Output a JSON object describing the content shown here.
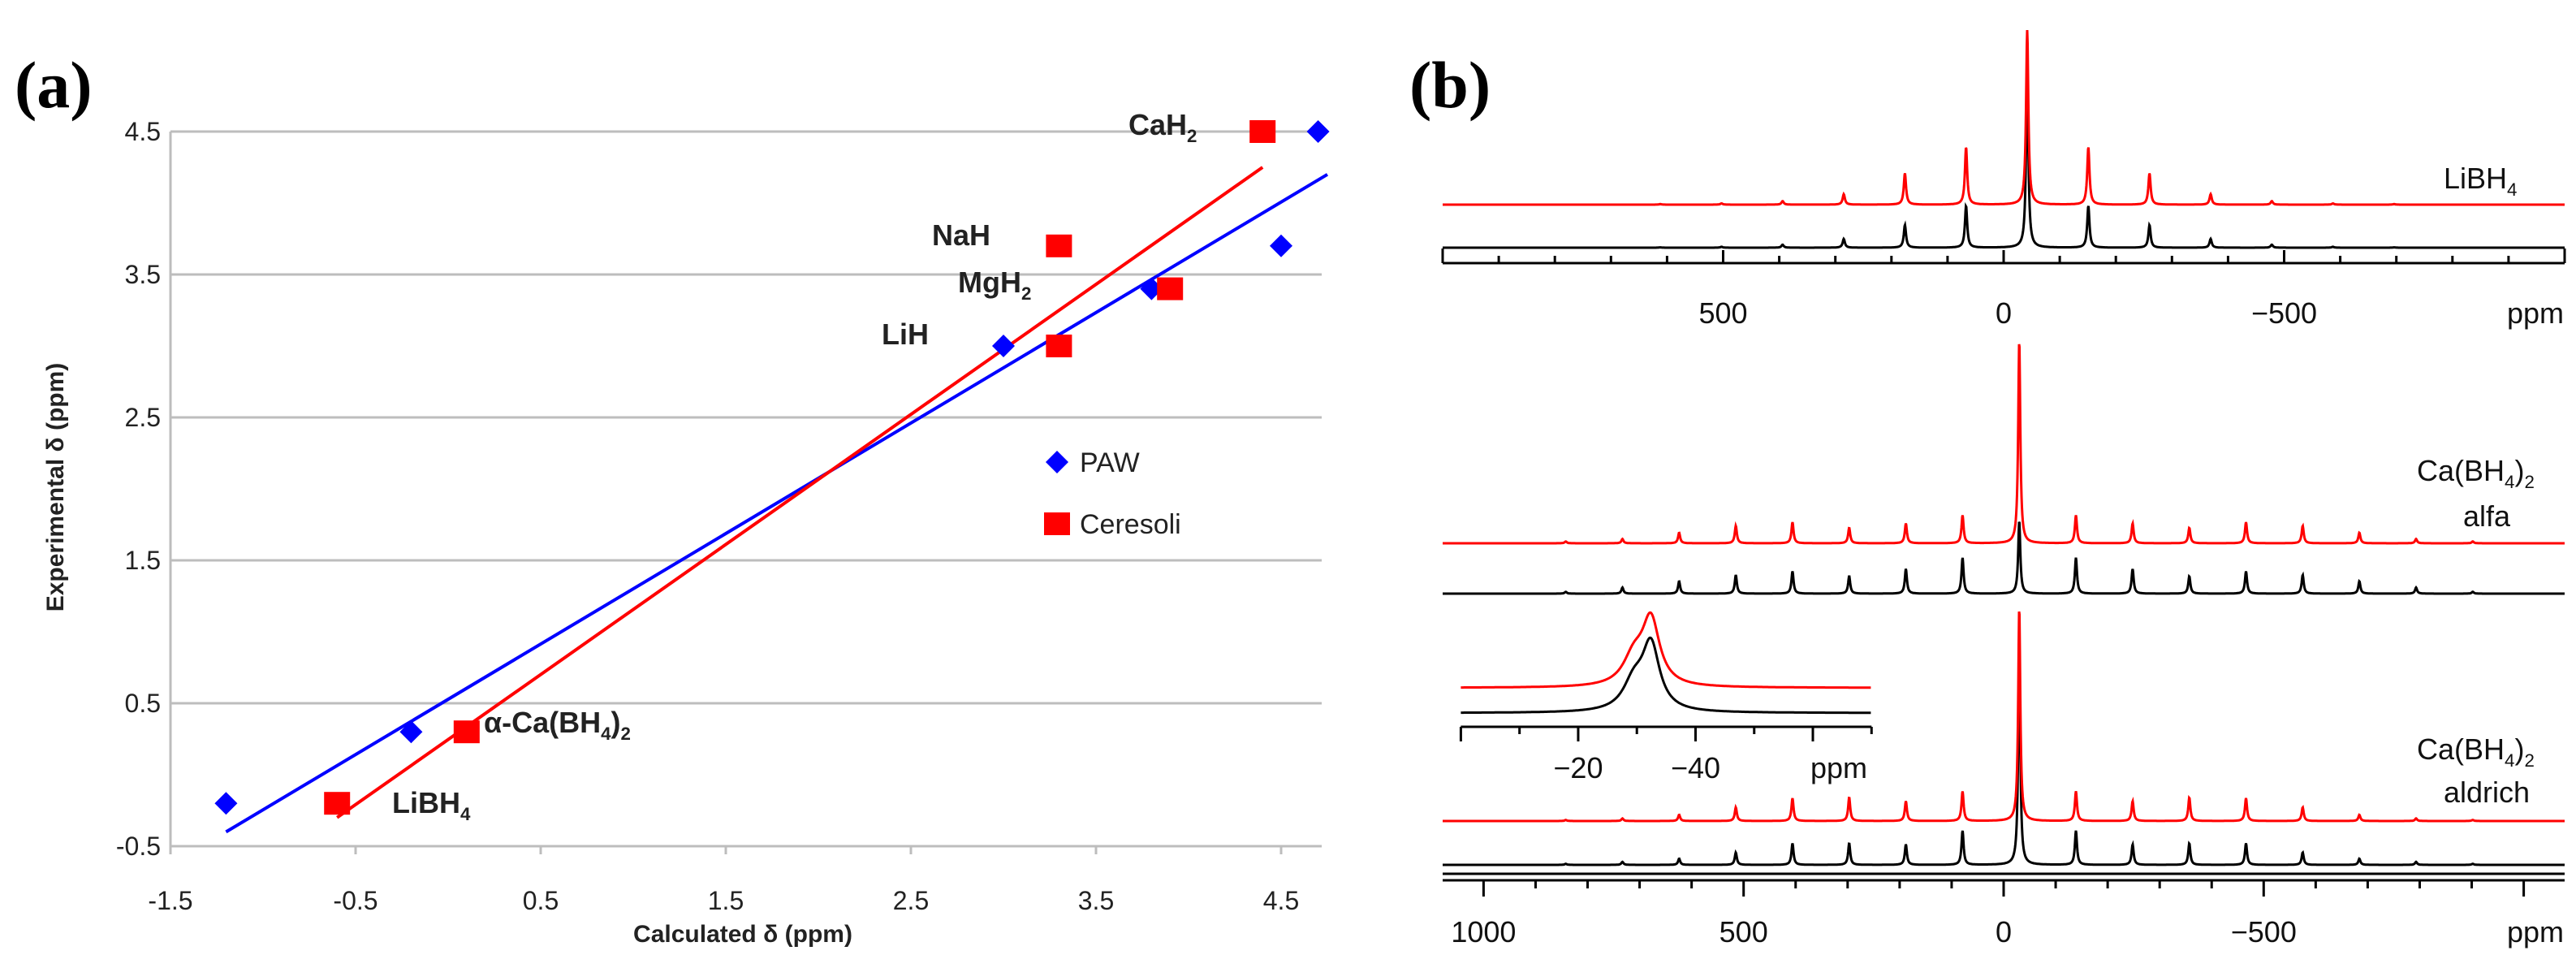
{
  "chart_data": [
    {
      "panel": "(a)",
      "type": "scatter",
      "xlabel": "Calculated δ (ppm)",
      "ylabel": "Experimental δ (ppm)",
      "xlim": [
        -1.5,
        4.75
      ],
      "ylim": [
        -0.5,
        4.5
      ],
      "xticks": [
        "-1.5",
        "-0.5",
        "0.5",
        "1.5",
        "2.5",
        "3.5",
        "4.5"
      ],
      "yticks": [
        "4.5",
        "3.5",
        "2.5",
        "1.5",
        "0.5",
        "-0.5"
      ],
      "grid": "horizontal",
      "legend_position": "center-right",
      "series": [
        {
          "name": "PAW",
          "marker": "diamond",
          "color": "#0000FF",
          "x": [
            -1.2,
            -0.2,
            3.0,
            3.8,
            4.5,
            4.7
          ],
          "y": [
            -0.2,
            0.3,
            3.0,
            3.4,
            3.7,
            4.5
          ],
          "fit": {
            "x": [
              -1.2,
              4.75
            ],
            "y": [
              -0.4,
              4.2
            ]
          }
        },
        {
          "name": "Ceresoli",
          "marker": "square",
          "color": "#FF0000",
          "x": [
            -0.6,
            0.1,
            3.3,
            3.3,
            3.9,
            4.4
          ],
          "y": [
            -0.2,
            0.3,
            3.0,
            3.7,
            3.4,
            4.5
          ],
          "fit": {
            "x": [
              -0.6,
              4.4
            ],
            "y": [
              -0.3,
              4.25
            ]
          }
        }
      ],
      "annotations": [
        {
          "segments": [
            {
              "t": "CaH"
            },
            {
              "t": "2",
              "sub": true
            }
          ]
        },
        {
          "segments": [
            {
              "t": "NaH"
            }
          ]
        },
        {
          "segments": [
            {
              "t": "MgH"
            },
            {
              "t": "2",
              "sub": true
            }
          ]
        },
        {
          "segments": [
            {
              "t": "LiH"
            }
          ]
        },
        {
          "segments": [
            {
              "t": "α-Ca(BH"
            },
            {
              "t": "4",
              "sub": true
            },
            {
              "t": ")"
            },
            {
              "t": "2",
              "sub": true
            }
          ]
        },
        {
          "segments": [
            {
              "t": "LiBH"
            },
            {
              "t": "4",
              "sub": true
            }
          ]
        }
      ]
    },
    {
      "panel": "(b)",
      "type": "line",
      "xlabel": "ppm",
      "sideband_spacing_ppm": 109,
      "colors": {
        "red": "#FF0000",
        "black": "#000000"
      },
      "spectra": [
        {
          "label": [
            {
              "t": "LiBH"
            },
            {
              "t": "4",
              "sub": true
            }
          ],
          "label2": "",
          "xlim": [
            1000,
            -1000
          ],
          "xticks": [
            "500",
            "0",
            "−500"
          ],
          "xtick_values": [
            500,
            0,
            -500
          ],
          "center_ppm": -42,
          "red": {
            "center": 100,
            "sidebands": [
              33,
              18,
              6,
              2,
              0.7,
              0.3
            ]
          },
          "black": {
            "center": 100,
            "sidebands": [
              24,
              13,
              5,
              1.7,
              0.5,
              0.2
            ]
          }
        },
        {
          "label": [
            {
              "t": "Ca(BH"
            },
            {
              "t": "4",
              "sub": true
            },
            {
              "t": ")"
            },
            {
              "t": "2",
              "sub": true
            }
          ],
          "label2": "alfa",
          "center_ppm": -30,
          "red": {
            "center": 100,
            "sidebands": [
              13.8,
              9.8,
              7.6,
              10.4,
              8.6,
              5.2,
              2.1,
              0.9
            ]
          },
          "black": {
            "center": 36,
            "sidebands": [
              17.7,
              12.2,
              8.6,
              11,
              9.2,
              6.1,
              3,
              0.9
            ]
          }
        },
        {
          "label": [
            {
              "t": "Ca(BH"
            },
            {
              "t": "4",
              "sub": true
            },
            {
              "t": ")"
            },
            {
              "t": "2",
              "sub": true
            }
          ],
          "label2": "aldrich",
          "center_ppm": -30,
          "red": {
            "center": 100,
            "sidebands": [
              13.9,
              9.3,
              11,
              10.7,
              6.4,
              2.9,
              1.2,
              0.5
            ]
          },
          "black": {
            "center": 101,
            "sidebands": [
              16,
              9.6,
              10.1,
              10.1,
              5.8,
              2.9,
              1.4,
              0.5
            ]
          }
        }
      ],
      "bottom_axis": {
        "xlim": [
          1080,
          -1080
        ],
        "xticks": [
          "1000",
          "500",
          "0",
          "−500"
        ],
        "xtick_values": [
          1000,
          500,
          0,
          -500
        ],
        "unit": "ppm"
      },
      "top_axis_unit": "ppm",
      "inset": {
        "xlim": [
          0,
          -70
        ],
        "xticks": [
          "−20",
          "−40"
        ],
        "xtick_values": [
          -20,
          -40
        ],
        "unit": "ppm",
        "peak_ppm": -32.4,
        "shoulder_ppm": -29.5
      }
    }
  ]
}
